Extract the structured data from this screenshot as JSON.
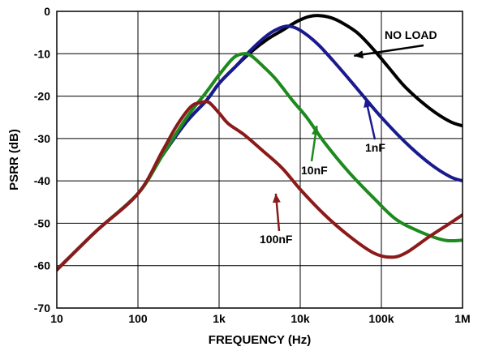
{
  "chart_data": {
    "type": "line",
    "xlabel": "FREQUENCY (Hz)",
    "ylabel": "PSRR (dB)",
    "xscale": "log",
    "xlim": [
      10,
      1000000
    ],
    "ylim": [
      -70,
      0
    ],
    "grid": true,
    "x_tick_values": [
      10,
      100,
      1000,
      10000,
      100000,
      1000000
    ],
    "x_tick_labels": [
      "10",
      "100",
      "1k",
      "10k",
      "100k",
      "1M"
    ],
    "y_tick_values": [
      0,
      -10,
      -20,
      -30,
      -40,
      -50,
      -60,
      -70
    ],
    "y_tick_labels": [
      "0",
      "-10",
      "-20",
      "-30",
      "-40",
      "-50",
      "-60",
      "-70"
    ],
    "series": [
      {
        "name": "NO LOAD",
        "color": "#000000",
        "x": [
          10,
          30,
          100,
          200,
          400,
          700,
          1000,
          1600,
          2500,
          4000,
          6000,
          8000,
          10000,
          13000,
          17000,
          22000,
          30000,
          50000,
          80000,
          120000,
          200000,
          400000,
          700000,
          1000000
        ],
        "y": [
          -61,
          -52,
          -43,
          -34,
          -26,
          -21,
          -17,
          -13,
          -9.5,
          -6.5,
          -4.5,
          -3,
          -2,
          -1.2,
          -1,
          -1.3,
          -2.3,
          -5,
          -9,
          -13,
          -18,
          -23,
          -26,
          -27
        ]
      },
      {
        "name": "1nF",
        "color": "#1a1a8f",
        "x": [
          10,
          30,
          100,
          200,
          400,
          700,
          1000,
          1600,
          2500,
          4000,
          5500,
          7000,
          9000,
          12000,
          17000,
          25000,
          40000,
          60000,
          100000,
          200000,
          400000,
          700000,
          1000000
        ],
        "y": [
          -61,
          -52,
          -43,
          -34,
          -26,
          -21,
          -17,
          -13,
          -9,
          -5.5,
          -4,
          -3.5,
          -4,
          -5.5,
          -8,
          -11.5,
          -16,
          -20,
          -25,
          -31,
          -36,
          -39,
          -40
        ]
      },
      {
        "name": "10nF",
        "color": "#1e8a1e",
        "x": [
          10,
          30,
          100,
          200,
          400,
          700,
          1000,
          1500,
          2000,
          2500,
          3500,
          5000,
          8000,
          12000,
          20000,
          40000,
          80000,
          150000,
          300000,
          600000,
          1000000
        ],
        "y": [
          -61,
          -52,
          -43,
          -34,
          -25,
          -19,
          -15,
          -11,
          -10,
          -10.5,
          -13,
          -16,
          -21,
          -25,
          -31,
          -38,
          -44,
          -49,
          -52,
          -54,
          -54
        ]
      },
      {
        "name": "100nF",
        "color": "#8b1a1a",
        "x": [
          10,
          30,
          100,
          200,
          300,
          450,
          600,
          750,
          1000,
          1300,
          2000,
          3500,
          6000,
          10000,
          20000,
          40000,
          80000,
          130000,
          200000,
          400000,
          700000,
          1000000
        ],
        "y": [
          -61,
          -52,
          -43,
          -33,
          -27,
          -22.5,
          -21.5,
          -21.5,
          -24,
          -26.5,
          -29,
          -33,
          -37,
          -42,
          -48,
          -53,
          -57,
          -58,
          -57,
          -53,
          -50,
          -48
        ]
      }
    ],
    "annotations": [
      {
        "text": "NO LOAD",
        "series": "NO LOAD",
        "point": [
          46000,
          -10.5
        ]
      },
      {
        "text": "1nF",
        "series": "1nF",
        "point": [
          64000,
          -20.5
        ]
      },
      {
        "text": "10nF",
        "series": "10nF",
        "point": [
          16000,
          -27
        ]
      },
      {
        "text": "100nF",
        "series": "100nF",
        "point": [
          5000,
          -43
        ]
      }
    ]
  }
}
